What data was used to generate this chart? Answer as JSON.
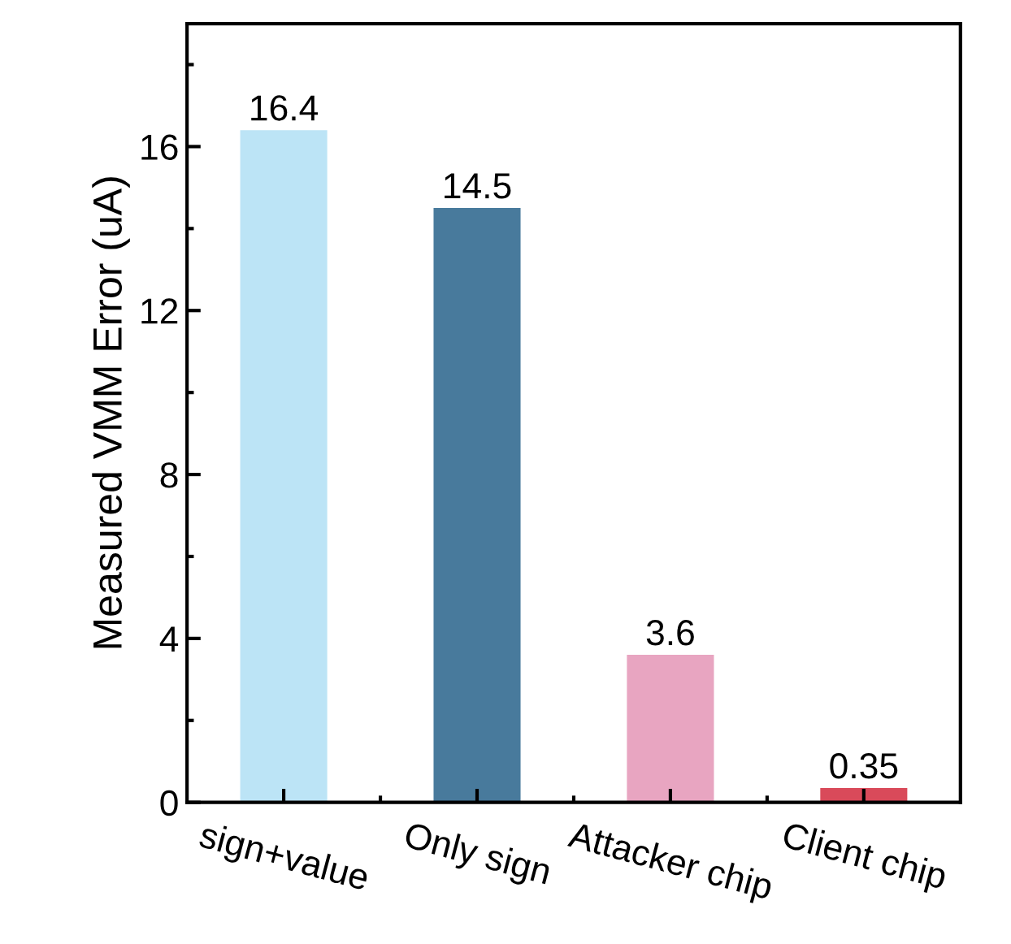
{
  "chart_data": {
    "type": "bar",
    "ylabel": "Measured VMM Error (uA)",
    "categories": [
      "sign+value",
      "Only sign",
      "Attacker chip",
      "Client chip"
    ],
    "values": [
      16.4,
      14.5,
      3.6,
      0.35
    ],
    "colors": [
      "#bce4f6",
      "#487a9c",
      "#e8a5c1",
      "#d94a5a"
    ],
    "ylim": [
      0,
      19
    ],
    "yticks": [
      0,
      4,
      8,
      12,
      16
    ],
    "data_labels": true,
    "grid": false,
    "legend": false
  }
}
